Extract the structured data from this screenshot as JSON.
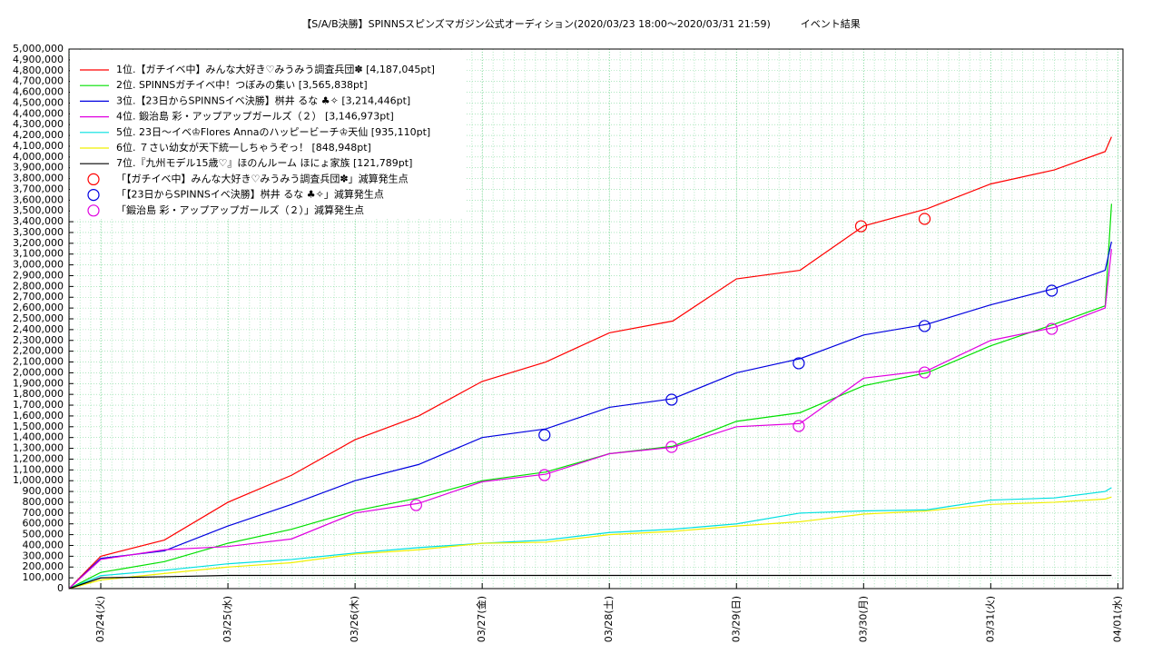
{
  "chart_data": {
    "type": "line",
    "title": "【S/A/B決勝】SPINNSスピンズマガジン公式オーディション(2020/03/23 18:00〜2020/03/31 21:59)　　　イベント結果",
    "grid": true,
    "legend": "upper left",
    "xlim": [
      23.75,
      32.04
    ],
    "xticks": [
      {
        "value": 24,
        "label": "03/24(火)"
      },
      {
        "value": 25,
        "label": "03/25(水)"
      },
      {
        "value": 26,
        "label": "03/26(木)"
      },
      {
        "value": 27,
        "label": "03/27(金)"
      },
      {
        "value": 28,
        "label": "03/28(土)"
      },
      {
        "value": 29,
        "label": "03/29(日)"
      },
      {
        "value": 30,
        "label": "03/30(月)"
      },
      {
        "value": 31,
        "label": "03/31(火)"
      },
      {
        "value": 32,
        "label": "04/01(水)"
      }
    ],
    "ylim": [
      0,
      5000000
    ],
    "yticks": [
      0,
      {
        "value": 100000,
        "label": "100,000"
      },
      {
        "value": 200000,
        "label": "200,000"
      },
      {
        "value": 300000,
        "label": "300,000"
      },
      {
        "value": 400000,
        "label": "400,000"
      },
      {
        "value": 500000,
        "label": "500,000"
      },
      {
        "value": 600000,
        "label": "600,000"
      },
      {
        "value": 700000,
        "label": "700,000"
      },
      {
        "value": 800000,
        "label": "800,000"
      },
      {
        "value": 900000,
        "label": "900,000"
      },
      {
        "value": 1000000,
        "label": "1,000,000"
      },
      {
        "value": 1100000,
        "label": "1,100,000"
      },
      {
        "value": 1200000,
        "label": "1,200,000"
      },
      {
        "value": 1300000,
        "label": "1,300,000"
      },
      {
        "value": 1400000,
        "label": "1,400,000"
      },
      {
        "value": 1500000,
        "label": "1,500,000"
      },
      {
        "value": 1600000,
        "label": "1,600,000"
      },
      {
        "value": 1700000,
        "label": "1,700,000"
      },
      {
        "value": 1800000,
        "label": "1,800,000"
      },
      {
        "value": 1900000,
        "label": "1,900,000"
      },
      {
        "value": 2000000,
        "label": "2,000,000"
      },
      {
        "value": 2100000,
        "label": "2,100,000"
      },
      {
        "value": 2200000,
        "label": "2,200,000"
      },
      {
        "value": 2300000,
        "label": "2,300,000"
      },
      {
        "value": 2400000,
        "label": "2,400,000"
      },
      {
        "value": 2500000,
        "label": "2,500,000"
      },
      {
        "value": 2600000,
        "label": "2,600,000"
      },
      {
        "value": 2700000,
        "label": "2,700,000"
      },
      {
        "value": 2800000,
        "label": "2,800,000"
      },
      {
        "value": 2900000,
        "label": "2,900,000"
      },
      {
        "value": 3000000,
        "label": "3,000,000"
      },
      {
        "value": 3100000,
        "label": "3,100,000"
      },
      {
        "value": 3200000,
        "label": "3,200,000"
      },
      {
        "value": 3300000,
        "label": "3,300,000"
      },
      {
        "value": 3400000,
        "label": "3,400,000"
      },
      {
        "value": 3500000,
        "label": "3,500,000"
      },
      {
        "value": 3600000,
        "label": "3,600,000"
      },
      {
        "value": 3700000,
        "label": "3,700,000"
      },
      {
        "value": 3800000,
        "label": "3,800,000"
      },
      {
        "value": 3900000,
        "label": "3,900,000"
      },
      {
        "value": 4000000,
        "label": "4,000,000"
      },
      {
        "value": 4100000,
        "label": "4,100,000"
      },
      {
        "value": 4200000,
        "label": "4,200,000"
      },
      {
        "value": 4300000,
        "label": "4,300,000"
      },
      {
        "value": 4400000,
        "label": "4,400,000"
      },
      {
        "value": 4500000,
        "label": "4,500,000"
      },
      {
        "value": 4600000,
        "label": "4,600,000"
      },
      {
        "value": 4700000,
        "label": "4,700,000"
      },
      {
        "value": 4800000,
        "label": "4,800,000"
      },
      {
        "value": 4900000,
        "label": "4,900,000"
      },
      {
        "value": 5000000,
        "label": "5,000,000"
      }
    ],
    "x": [
      23.75,
      24,
      24.5,
      25,
      25.5,
      26,
      26.5,
      27,
      27.5,
      28,
      28.5,
      29,
      29.5,
      30,
      30.5,
      31,
      31.5,
      31.9,
      31.95
    ],
    "series": [
      {
        "name": "1位.【ガチイベ中】みんな大好き♡みうみう調査兵団✽ [4,187,045pt]",
        "color": "#ff0000",
        "values": [
          0,
          300000,
          450000,
          800000,
          1050000,
          1380000,
          1600000,
          1920000,
          2100000,
          2370000,
          2480000,
          2870000,
          2950000,
          3360000,
          3520000,
          3750000,
          3880000,
          4050000,
          4187045
        ]
      },
      {
        "name": "2位. SPINNSガチイベ中！つぼみの集い [3,565,838pt]",
        "color": "#00e000",
        "values": [
          0,
          150000,
          250000,
          420000,
          550000,
          720000,
          840000,
          1000000,
          1080000,
          1250000,
          1320000,
          1550000,
          1630000,
          1880000,
          2000000,
          2250000,
          2450000,
          2620000,
          3565838
        ]
      },
      {
        "name": "3位.【23日からSPINNSイベ決勝】桝井 るな ♣✧ [3,214,446pt]",
        "color": "#0000e0",
        "values": [
          0,
          280000,
          350000,
          580000,
          780000,
          1000000,
          1150000,
          1400000,
          1480000,
          1680000,
          1760000,
          2000000,
          2130000,
          2350000,
          2450000,
          2630000,
          2780000,
          2950000,
          3214446
        ]
      },
      {
        "name": "4位. 鍛治島 彩・アップアップガールズ（２） [3,146,973pt]",
        "color": "#e000e0",
        "values": [
          0,
          270000,
          360000,
          390000,
          460000,
          700000,
          790000,
          990000,
          1060000,
          1250000,
          1310000,
          1500000,
          1530000,
          1950000,
          2020000,
          2300000,
          2420000,
          2600000,
          3146973
        ]
      },
      {
        "name": "5位. 23日〜イベ♔Flores Annaのハッピービーチ♔天仙 [935,110pt]",
        "color": "#00e0e0",
        "values": [
          0,
          120000,
          170000,
          230000,
          270000,
          330000,
          380000,
          420000,
          450000,
          520000,
          550000,
          600000,
          700000,
          720000,
          730000,
          820000,
          840000,
          900000,
          935110
        ]
      },
      {
        "name": "6位. ７さい幼女が天下統一しちゃうぞっ！ [848,948pt]",
        "color": "#f0f000",
        "values": [
          0,
          80000,
          140000,
          200000,
          240000,
          320000,
          360000,
          420000,
          430000,
          500000,
          530000,
          580000,
          620000,
          690000,
          720000,
          780000,
          800000,
          830000,
          848948
        ]
      },
      {
        "name": "7位.『九州モデル15歳♡』ほのんルーム ほにょ家族 [121,789pt]",
        "color": "#000000",
        "values": [
          0,
          100000,
          110000,
          121789,
          121789,
          121789,
          121789,
          121789,
          121789,
          121789,
          121789,
          121789,
          121789,
          121789,
          121789,
          121789,
          121789,
          121789,
          121789
        ]
      },
      {
        "name": "「【ガチイベ中】みんな大好き♡みうみう調査兵団✽」減算発生点",
        "color": "#ff0000",
        "type": "scatter",
        "x": [
          29.98,
          30.48
        ],
        "values": [
          3358000,
          3426000
        ]
      },
      {
        "name": "「【23日からSPINNSイベ決勝】桝井 るな ♣✧」減算発生点",
        "color": "#0000e0",
        "type": "scatter",
        "x": [
          27.49,
          28.49,
          29.49,
          30.48,
          31.48
        ],
        "values": [
          1423000,
          1751000,
          2088000,
          2433000,
          2761000
        ]
      },
      {
        "name": "「鍛治島 彩・アップアップガールズ（２）」減算発生点",
        "color": "#e000e0",
        "type": "scatter",
        "x": [
          26.48,
          27.49,
          28.49,
          29.49,
          30.48,
          31.48
        ],
        "values": [
          774000,
          1052000,
          1313000,
          1507000,
          2003000,
          2407000
        ]
      }
    ]
  }
}
